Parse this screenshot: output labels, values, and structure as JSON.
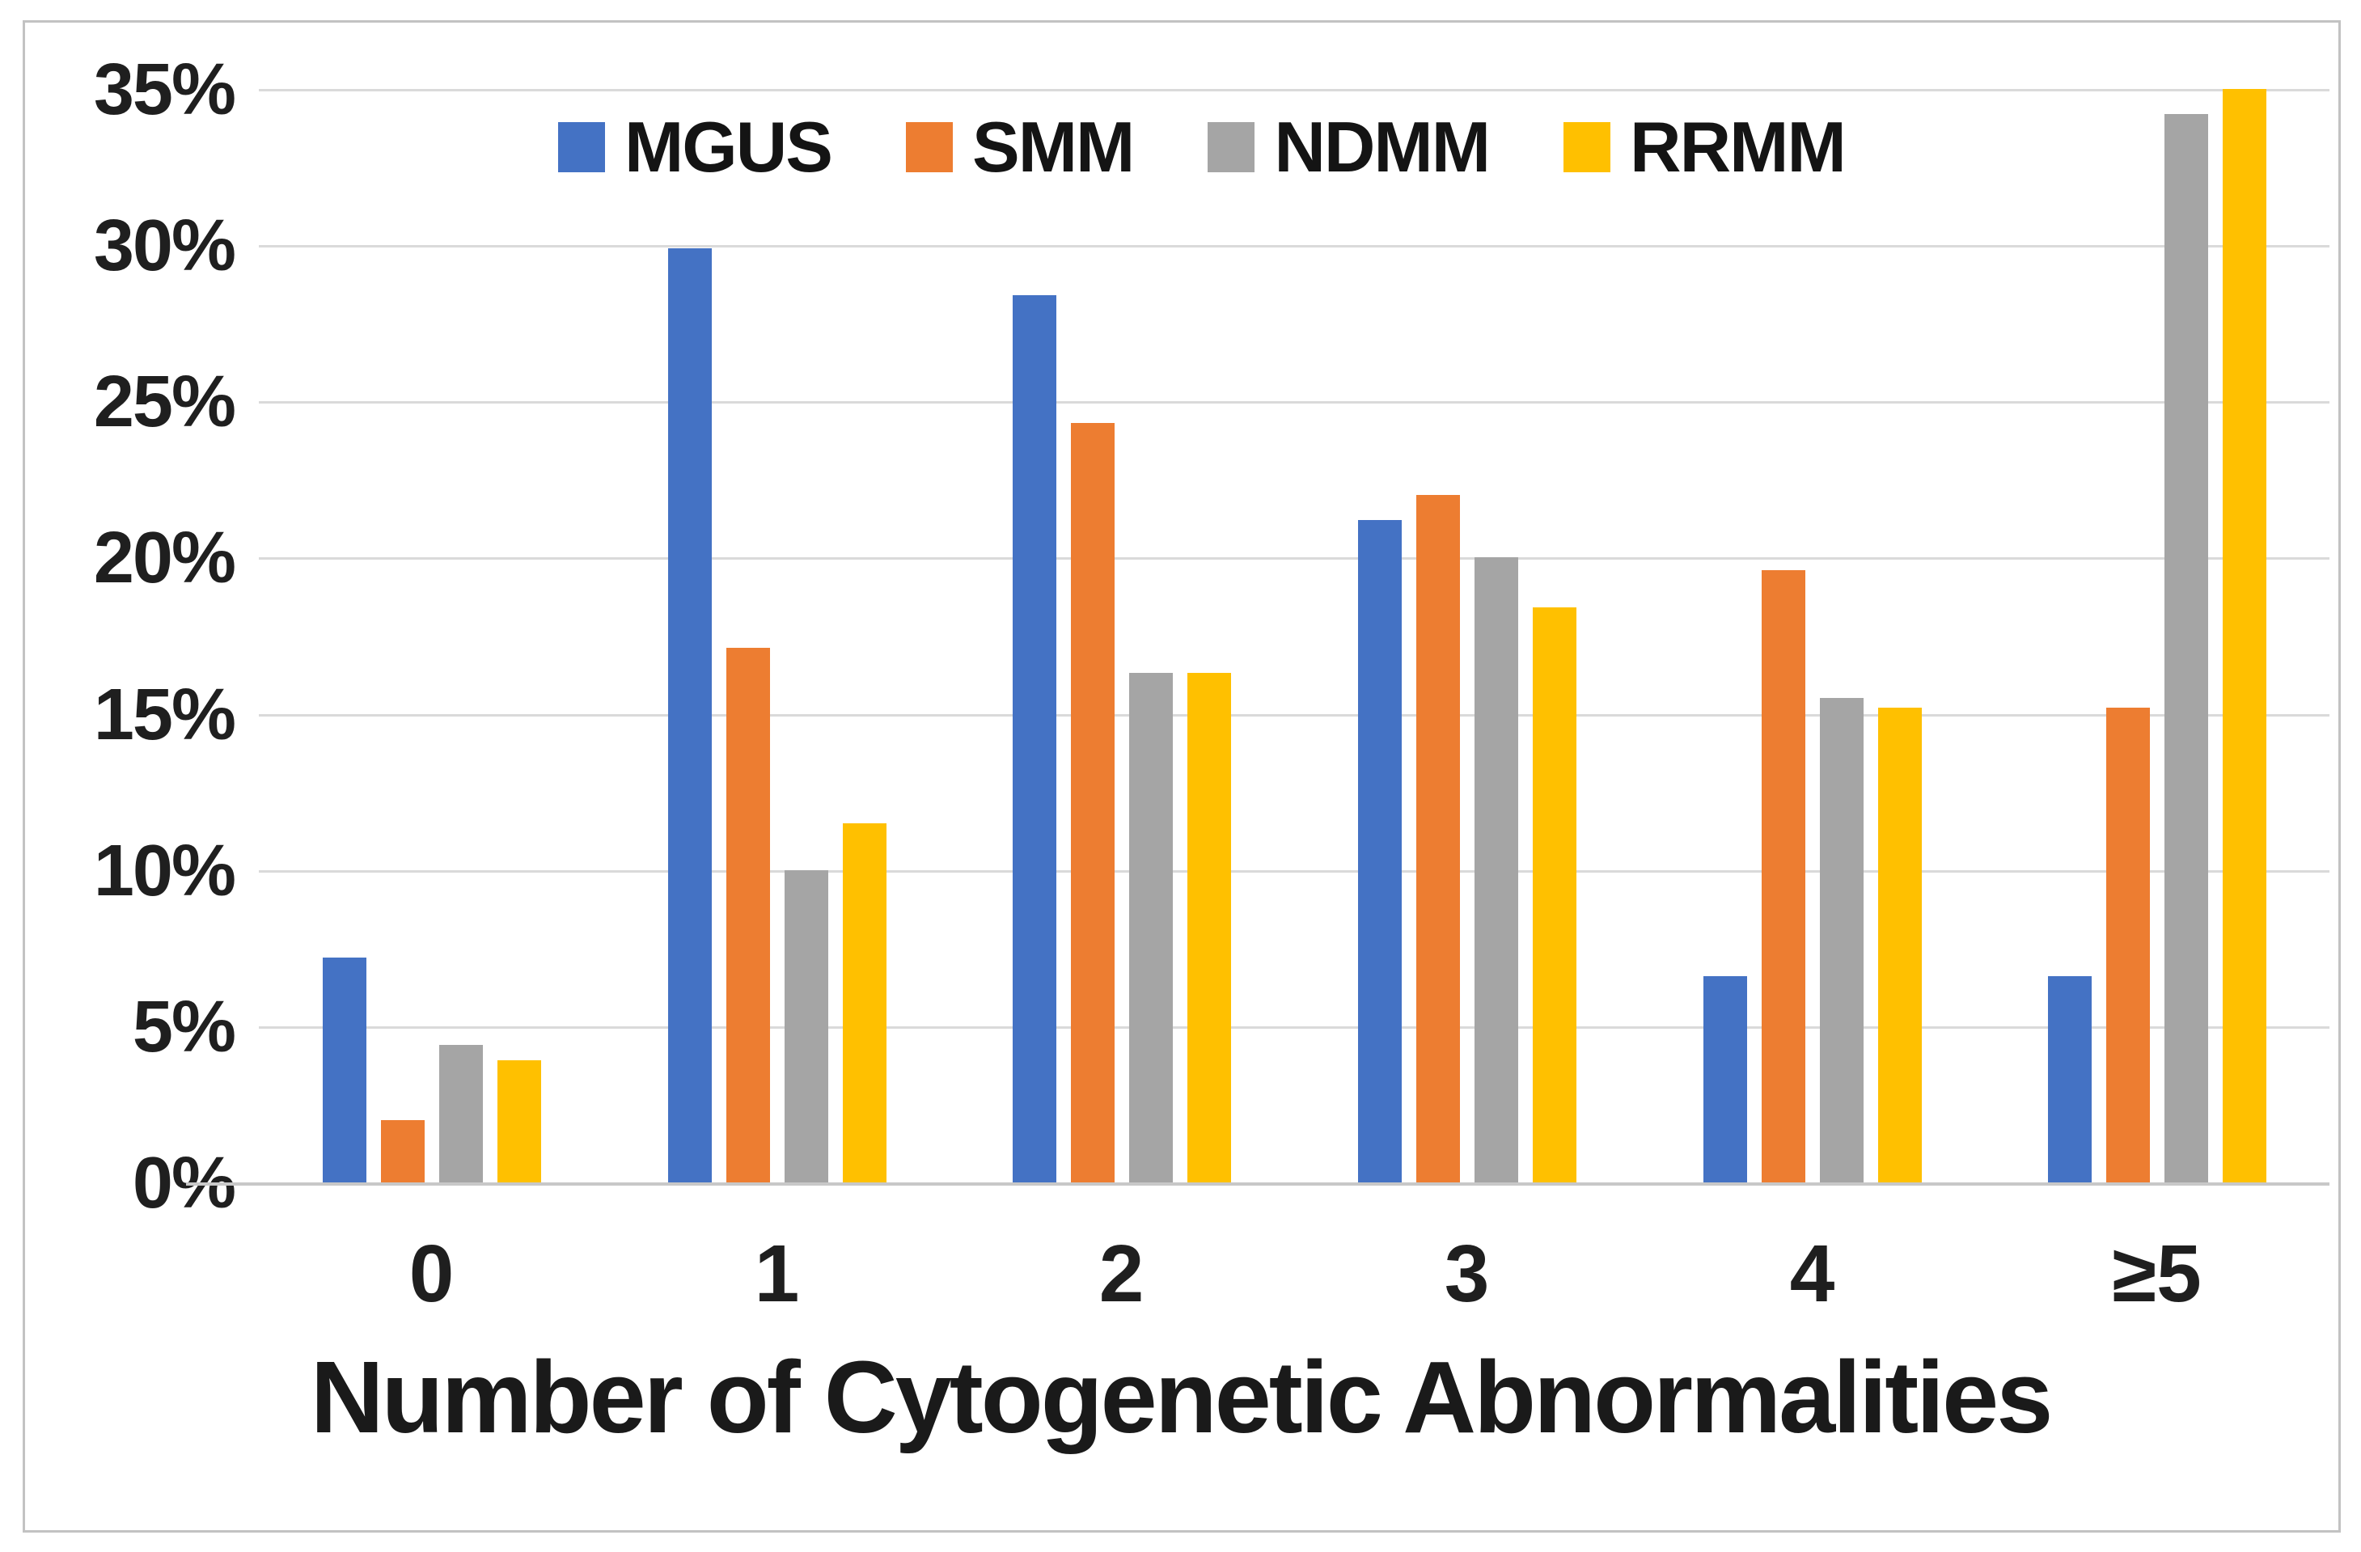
{
  "chart_data": {
    "type": "bar",
    "title": "",
    "xlabel": "Number of Cytogenetic Abnormalities",
    "ylabel": "",
    "categories": [
      "0",
      "1",
      "2",
      "3",
      "4",
      "≥5"
    ],
    "series": [
      {
        "name": "MGUS",
        "color": "#4472C4",
        "values": [
          7.2,
          29.9,
          28.4,
          21.2,
          6.6,
          6.6
        ]
      },
      {
        "name": "SMM",
        "color": "#ED7D31",
        "values": [
          2.0,
          17.1,
          24.3,
          22.0,
          19.6,
          15.2
        ]
      },
      {
        "name": "NDMM",
        "color": "#A5A5A5",
        "values": [
          4.4,
          10.0,
          16.3,
          20.0,
          15.5,
          34.2
        ]
      },
      {
        "name": "RRMM",
        "color": "#FFC000",
        "values": [
          3.9,
          11.5,
          16.3,
          18.4,
          15.2,
          35.0
        ]
      }
    ],
    "y_axis": {
      "min": 0,
      "max": 35,
      "step": 5,
      "suffix": "%"
    },
    "ylim": [
      0,
      35
    ],
    "grid": true,
    "legend_position": "top-center"
  },
  "colors": {
    "grid": "#dadada",
    "baseline": "#c8c8c8",
    "frame": "#c2c2c2",
    "text": "#1f1f1f"
  }
}
